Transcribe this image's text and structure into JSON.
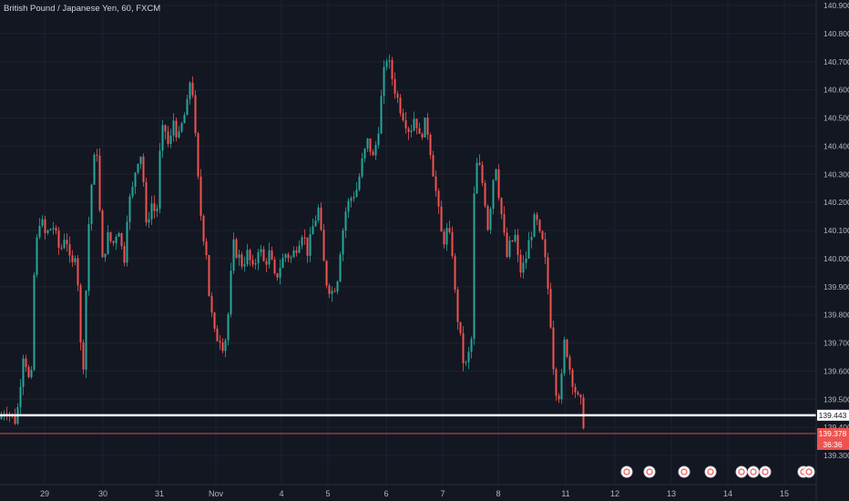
{
  "chart_data": {
    "type": "candlestick",
    "title": "British Pound / Japanese Yen, 60, FXCM",
    "interval": "60",
    "source": "FXCM",
    "ylim": [
      139.3,
      140.9
    ],
    "y_ticks": [
      "140.900",
      "140.800",
      "140.700",
      "140.600",
      "140.500",
      "140.400",
      "140.300",
      "140.200",
      "140.100",
      "140.000",
      "139.900",
      "139.800",
      "139.700",
      "139.600",
      "139.500",
      "139.400",
      "139.300"
    ],
    "x_ticks": [
      "29",
      "30",
      "31",
      "Nov",
      "4",
      "5",
      "6",
      "7",
      "8",
      "11",
      "12",
      "13",
      "14",
      "15"
    ],
    "colors": {
      "up": "#26a69a",
      "down": "#ef5350",
      "background": "#131722",
      "axis_text": "#b2b5be"
    },
    "grid": true,
    "horizontal_line": {
      "value": 139.443,
      "label": "139.443",
      "color": "#ffffff"
    },
    "last_price": {
      "value": 139.378,
      "label": "139.378",
      "countdown": "36:36",
      "color": "#ef5350"
    },
    "close_path": [
      [
        0,
        139.43
      ],
      [
        6,
        139.47
      ],
      [
        18,
        139.42
      ],
      [
        26,
        139.68
      ],
      [
        34,
        139.52
      ],
      [
        38,
        140.0
      ],
      [
        44,
        140.15
      ],
      [
        50,
        140.08
      ],
      [
        58,
        140.12
      ],
      [
        66,
        140.02
      ],
      [
        72,
        140.1
      ],
      [
        78,
        139.95
      ],
      [
        84,
        140.05
      ],
      [
        88,
        139.7
      ],
      [
        92,
        139.62
      ],
      [
        96,
        140.05
      ],
      [
        100,
        140.25
      ],
      [
        106,
        140.42
      ],
      [
        112,
        139.98
      ],
      [
        118,
        140.08
      ],
      [
        124,
        140.05
      ],
      [
        130,
        140.12
      ],
      [
        136,
        139.98
      ],
      [
        140,
        140.18
      ],
      [
        146,
        140.25
      ],
      [
        150,
        140.35
      ],
      [
        156,
        140.38
      ],
      [
        160,
        140.1
      ],
      [
        166,
        140.2
      ],
      [
        172,
        140.15
      ],
      [
        176,
        140.4
      ],
      [
        180,
        140.48
      ],
      [
        186,
        140.38
      ],
      [
        190,
        140.5
      ],
      [
        196,
        140.42
      ],
      [
        200,
        140.48
      ],
      [
        206,
        140.55
      ],
      [
        210,
        140.68
      ],
      [
        214,
        140.45
      ],
      [
        218,
        140.25
      ],
      [
        222,
        140.1
      ],
      [
        226,
        140.05
      ],
      [
        230,
        139.85
      ],
      [
        236,
        139.72
      ],
      [
        242,
        139.72
      ],
      [
        246,
        139.68
      ],
      [
        250,
        139.78
      ],
      [
        256,
        140.05
      ],
      [
        260,
        140.02
      ],
      [
        266,
        139.98
      ],
      [
        272,
        140.02
      ],
      [
        278,
        139.95
      ],
      [
        284,
        140.05
      ],
      [
        290,
        139.98
      ],
      [
        296,
        140.02
      ],
      [
        302,
        139.92
      ],
      [
        308,
        139.98
      ],
      [
        314,
        140.02
      ],
      [
        320,
        140.0
      ],
      [
        326,
        140.05
      ],
      [
        332,
        140.1
      ],
      [
        338,
        140.02
      ],
      [
        344,
        140.12
      ],
      [
        350,
        140.18
      ],
      [
        354,
        140.02
      ],
      [
        358,
        139.92
      ],
      [
        364,
        139.88
      ],
      [
        370,
        139.92
      ],
      [
        374,
        140.05
      ],
      [
        380,
        140.18
      ],
      [
        386,
        140.22
      ],
      [
        392,
        140.25
      ],
      [
        398,
        140.35
      ],
      [
        404,
        140.42
      ],
      [
        410,
        140.35
      ],
      [
        416,
        140.48
      ],
      [
        420,
        140.62
      ],
      [
        424,
        140.72
      ],
      [
        428,
        140.68
      ],
      [
        432,
        140.62
      ],
      [
        438,
        140.55
      ],
      [
        444,
        140.5
      ],
      [
        450,
        140.45
      ],
      [
        456,
        140.52
      ],
      [
        460,
        140.42
      ],
      [
        466,
        140.48
      ],
      [
        470,
        140.45
      ],
      [
        476,
        140.3
      ],
      [
        482,
        140.15
      ],
      [
        486,
        140.05
      ],
      [
        490,
        140.1
      ],
      [
        496,
        140.05
      ],
      [
        500,
        139.85
      ],
      [
        506,
        139.7
      ],
      [
        510,
        139.6
      ],
      [
        514,
        139.65
      ],
      [
        518,
        139.72
      ],
      [
        520,
        140.2
      ],
      [
        524,
        140.35
      ],
      [
        528,
        140.3
      ],
      [
        532,
        140.22
      ],
      [
        536,
        140.1
      ],
      [
        540,
        140.25
      ],
      [
        544,
        140.35
      ],
      [
        548,
        140.22
      ],
      [
        552,
        140.12
      ],
      [
        556,
        140.0
      ],
      [
        560,
        140.05
      ],
      [
        566,
        140.08
      ],
      [
        570,
        139.95
      ],
      [
        576,
        139.98
      ],
      [
        582,
        140.08
      ],
      [
        588,
        140.15
      ],
      [
        592,
        140.08
      ],
      [
        596,
        140.05
      ],
      [
        600,
        139.95
      ],
      [
        604,
        139.8
      ],
      [
        608,
        139.6
      ],
      [
        612,
        139.5
      ],
      [
        616,
        139.55
      ],
      [
        620,
        139.72
      ],
      [
        626,
        139.6
      ],
      [
        630,
        139.55
      ],
      [
        634,
        139.5
      ],
      [
        638,
        139.48
      ],
      [
        642,
        139.38
      ]
    ],
    "events": [
      "calendar-event",
      "calendar-event",
      "calendar-event",
      "calendar-event",
      "calendar-event",
      "calendar-event",
      "calendar-event",
      "calendar-event",
      "calendar-event"
    ]
  }
}
